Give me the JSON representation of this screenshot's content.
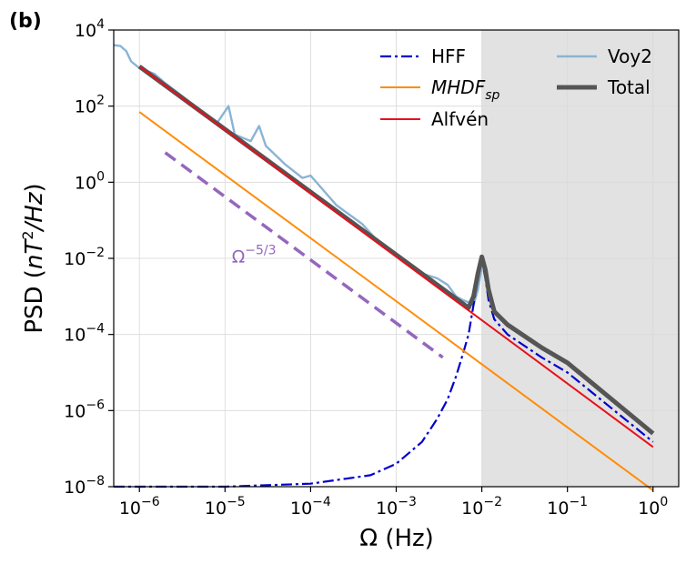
{
  "panel_label": "(b)",
  "colors": {
    "hff": "#0000cc",
    "mhdf": "#ff8c0a",
    "alfven": "#e8101a",
    "voy2": "#8ab4d4",
    "total": "#555555",
    "slope": "#9467bd",
    "shade": "#e2e2e2"
  },
  "chart_data": {
    "type": "line",
    "xlabel": "Ω (Hz)",
    "ylabel_parts": {
      "base": "PSD",
      "unit_open": " (",
      "unit_n": "nT",
      "unit_sup": "2",
      "unit_rest": "/Hz",
      "unit_close": ")"
    },
    "xscale": "log",
    "yscale": "log",
    "xlim_exp": [
      -6.3,
      0.3
    ],
    "ylim_exp": [
      -8,
      4
    ],
    "x_ticks": [
      {
        "base": "10",
        "exp": "−6",
        "value": 1e-06
      },
      {
        "base": "10",
        "exp": "−5",
        "value": 1e-05
      },
      {
        "base": "10",
        "exp": "−4",
        "value": 0.0001
      },
      {
        "base": "10",
        "exp": "−3",
        "value": 0.001
      },
      {
        "base": "10",
        "exp": "−2",
        "value": 0.01
      },
      {
        "base": "10",
        "exp": "−1",
        "value": 0.1
      },
      {
        "base": "10",
        "exp": "0",
        "value": 1
      }
    ],
    "y_ticks": [
      {
        "base": "10",
        "exp": "4",
        "value": 10000.0
      },
      {
        "base": "10",
        "exp": "2",
        "value": 100.0
      },
      {
        "base": "10",
        "exp": "0",
        "value": 1
      },
      {
        "base": "10",
        "exp": "−2",
        "value": 0.01
      },
      {
        "base": "10",
        "exp": "−4",
        "value": 0.0001
      },
      {
        "base": "10",
        "exp": "−6",
        "value": 1e-06
      },
      {
        "base": "10",
        "exp": "−8",
        "value": 1e-08
      }
    ],
    "grid": true,
    "shaded_region_x": [
      0.01,
      2
    ],
    "annotation": {
      "base": "Ω",
      "sup": "−5/3",
      "x": 1.2e-05,
      "y": 0.012
    },
    "legend": {
      "placement": "top-right",
      "entries": [
        {
          "label": "HFF",
          "series": "hff"
        },
        {
          "label": "Voy2",
          "series": "voy2"
        },
        {
          "label": "MHDF",
          "sub": "sp",
          "italic": true,
          "series": "mhdf"
        },
        {
          "label": "Total",
          "series": "total"
        },
        {
          "label": "Alfvén",
          "series": "alfven"
        }
      ]
    },
    "series": [
      {
        "name": "HFF",
        "id": "hff",
        "style": "dashdot",
        "x": [
          5e-07,
          1e-06,
          1e-05,
          0.0001,
          0.0005,
          0.001,
          0.002,
          0.003,
          0.004,
          0.005,
          0.006,
          0.007,
          0.008,
          0.009,
          0.01,
          0.011,
          0.012,
          0.014,
          0.02,
          0.05,
          0.1,
          1
        ],
        "y": [
          1e-08,
          1e-08,
          1e-08,
          1.2e-08,
          2e-08,
          4e-08,
          1.5e-07,
          6e-07,
          2e-06,
          8e-06,
          3e-05,
          0.0001,
          0.0006,
          0.003,
          0.009,
          0.003,
          0.0008,
          0.00025,
          0.0001,
          2.5e-05,
          1e-05,
          1.5e-07
        ]
      },
      {
        "name": "MHDF",
        "id": "mhdf",
        "style": "solid",
        "x": [
          1e-06,
          1
        ],
        "y": [
          70,
          8e-09
        ]
      },
      {
        "name": "Alfvén",
        "id": "alfven",
        "style": "solid",
        "x": [
          1e-06,
          1
        ],
        "y": [
          1100,
          1.1e-07
        ]
      },
      {
        "name": "Voy2",
        "id": "voy2",
        "style": "solid",
        "x": [
          5e-07,
          6e-07,
          7e-07,
          8e-07,
          1e-06,
          1.5e-06,
          2e-06,
          3e-06,
          5e-06,
          8e-06,
          1.1e-05,
          1.3e-05,
          2e-05,
          2.5e-05,
          3e-05,
          5e-05,
          8e-05,
          0.0001,
          0.0002,
          0.0004,
          0.0007,
          0.001,
          0.0015,
          0.002,
          0.003,
          0.004,
          0.005,
          0.006,
          0.007,
          0.008,
          0.009,
          0.01
        ],
        "y": [
          4000,
          3800,
          2800,
          1500,
          1000,
          700,
          400,
          200,
          80,
          35,
          100,
          18,
          12,
          30,
          9,
          3,
          1.3,
          1.5,
          0.25,
          0.08,
          0.02,
          0.012,
          0.006,
          0.004,
          0.003,
          0.002,
          0.001,
          0.0008,
          0.0007,
          0.0006,
          0.0015,
          0.006
        ]
      },
      {
        "name": "Total",
        "id": "total",
        "style": "solid-thick",
        "x": [
          1e-06,
          0.007,
          0.008,
          0.009,
          0.01,
          0.011,
          0.012,
          0.014,
          0.02,
          0.05,
          0.1,
          1
        ],
        "y": [
          1100,
          0.0005,
          0.001,
          0.004,
          0.011,
          0.005,
          0.0015,
          0.0004,
          0.00018,
          4.5e-05,
          1.8e-05,
          2.5e-07
        ]
      },
      {
        "name": "",
        "id": "slope",
        "style": "dashed",
        "x": [
          2e-06,
          0.0035
        ],
        "y": [
          6,
          2.5e-05
        ]
      }
    ]
  }
}
